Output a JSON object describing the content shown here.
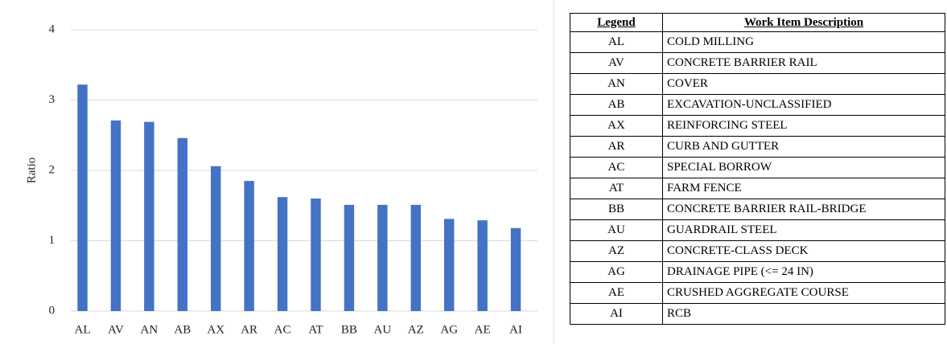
{
  "chart_data": {
    "type": "bar",
    "y_label": "Ratio",
    "categories": [
      "AL",
      "AV",
      "AN",
      "AB",
      "AX",
      "AR",
      "AC",
      "AT",
      "BB",
      "AU",
      "AZ",
      "AG",
      "AE",
      "AI"
    ],
    "values": [
      3.22,
      2.71,
      2.69,
      2.46,
      2.06,
      1.85,
      1.62,
      1.6,
      1.51,
      1.51,
      1.51,
      1.31,
      1.29,
      1.18
    ],
    "color": "#4472c4",
    "ylim": [
      0,
      4
    ],
    "yticks": [
      0,
      1,
      2,
      3,
      4
    ],
    "grid": true
  },
  "table": {
    "headers": [
      "Legend",
      "Work Item Description"
    ],
    "rows": [
      [
        "AL",
        "COLD MILLING"
      ],
      [
        "AV",
        "CONCRETE BARRIER RAIL"
      ],
      [
        "AN",
        "COVER"
      ],
      [
        "AB",
        "EXCAVATION-UNCLASSIFIED"
      ],
      [
        "AX",
        "REINFORCING STEEL"
      ],
      [
        "AR",
        "CURB AND GUTTER"
      ],
      [
        "AC",
        "SPECIAL BORROW"
      ],
      [
        "AT",
        "FARM FENCE"
      ],
      [
        "BB",
        "CONCRETE BARRIER RAIL-BRIDGE"
      ],
      [
        "AU",
        "GUARDRAIL STEEL"
      ],
      [
        "AZ",
        "CONCRETE-CLASS DECK"
      ],
      [
        "AG",
        "DRAINAGE PIPE (<= 24 IN)"
      ],
      [
        "AE",
        "CRUSHED AGGREGATE COURSE"
      ],
      [
        "AI",
        "RCB"
      ]
    ]
  }
}
